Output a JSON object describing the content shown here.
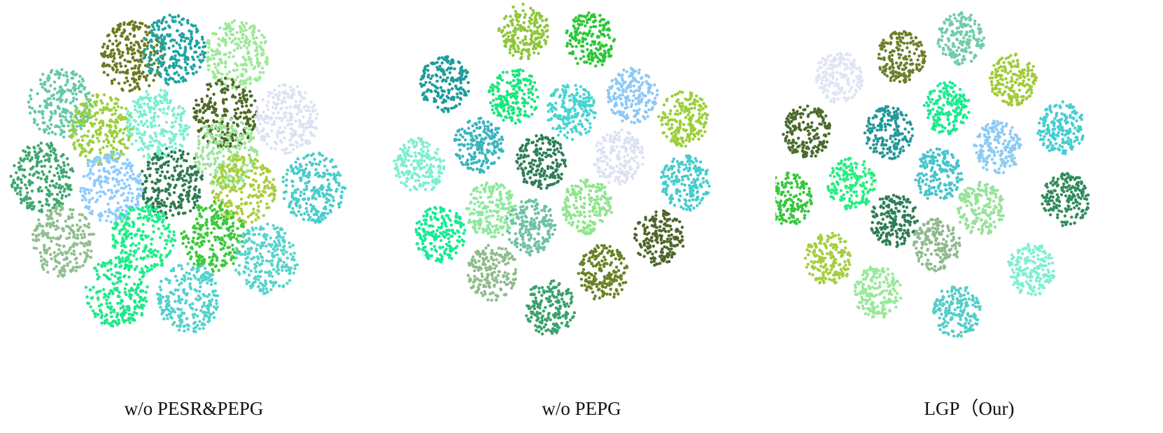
{
  "chart_data": [
    {
      "type": "scatter",
      "title": "w/o PESR&PEPG",
      "xlabel": "",
      "ylabel": "",
      "grid": false,
      "legend": "none",
      "series": [
        {
          "color": "#6b7a1e",
          "x": [
            189
          ],
          "y": [
            81
          ]
        },
        {
          "color": "#20a5a0",
          "x": [
            248
          ],
          "y": [
            71
          ]
        },
        {
          "color": "#9ee89a",
          "x": [
            338
          ],
          "y": [
            78
          ]
        },
        {
          "color": "#66c9a8",
          "x": [
            86
          ],
          "y": [
            148
          ]
        },
        {
          "color": "#9ccf3e",
          "x": [
            145
          ],
          "y": [
            185
          ]
        },
        {
          "color": "#7af0d0",
          "x": [
            225
          ],
          "y": [
            178
          ]
        },
        {
          "color": "#4f6b26",
          "x": [
            322
          ],
          "y": [
            162
          ]
        },
        {
          "color": "#dde2f2",
          "x": [
            410
          ],
          "y": [
            170
          ]
        },
        {
          "color": "#3fa86e",
          "x": [
            60
          ],
          "y": [
            253
          ]
        },
        {
          "color": "#8dccff",
          "x": [
            158
          ],
          "y": [
            268
          ]
        },
        {
          "color": "#2f7b52",
          "x": [
            246
          ],
          "y": [
            262
          ]
        },
        {
          "color": "#9de59a",
          "x": [
            322
          ],
          "y": [
            218
          ]
        },
        {
          "color": "#a8cf3c",
          "x": [
            348
          ],
          "y": [
            270
          ]
        },
        {
          "color": "#48cdca",
          "x": [
            448
          ],
          "y": [
            268
          ]
        },
        {
          "color": "#8fbf8f",
          "x": [
            90
          ],
          "y": [
            345
          ]
        },
        {
          "color": "#1fee8b",
          "x": [
            205
          ],
          "y": [
            340
          ]
        },
        {
          "color": "#3cc93c",
          "x": [
            305
          ],
          "y": [
            338
          ]
        },
        {
          "color": "#55d4cc",
          "x": [
            380
          ],
          "y": [
            370
          ]
        },
        {
          "color": "#1fe88a",
          "x": [
            168
          ],
          "y": [
            418
          ]
        },
        {
          "color": "#52d2cc",
          "x": [
            270
          ],
          "y": [
            425
          ]
        }
      ]
    },
    {
      "type": "scatter",
      "title": "w/o PEPG",
      "xlabel": "",
      "ylabel": "",
      "grid": false,
      "legend": "none",
      "series": [
        {
          "color": "#8ec63b",
          "x": [
            195
          ],
          "y": [
            45
          ]
        },
        {
          "color": "#2cc736",
          "x": [
            290
          ],
          "y": [
            58
          ]
        },
        {
          "color": "#1e9c9a",
          "x": [
            82
          ],
          "y": [
            120
          ]
        },
        {
          "color": "#19e67d",
          "x": [
            180
          ],
          "y": [
            137
          ]
        },
        {
          "color": "#48d4d0",
          "x": [
            262
          ],
          "y": [
            160
          ]
        },
        {
          "color": "#8cc8f6",
          "x": [
            350
          ],
          "y": [
            137
          ]
        },
        {
          "color": "#9bcf38",
          "x": [
            423
          ],
          "y": [
            170
          ]
        },
        {
          "color": "#3ab5bd",
          "x": [
            130
          ],
          "y": [
            207
          ]
        },
        {
          "color": "#2e7e56",
          "x": [
            220
          ],
          "y": [
            232
          ]
        },
        {
          "color": "#dde2f2",
          "x": [
            330
          ],
          "y": [
            225
          ]
        },
        {
          "color": "#7defd0",
          "x": [
            45
          ],
          "y": [
            237
          ]
        },
        {
          "color": "#46cccc",
          "x": [
            425
          ],
          "y": [
            262
          ]
        },
        {
          "color": "#90e58c",
          "x": [
            285
          ],
          "y": [
            295
          ]
        },
        {
          "color": "#8ee99c",
          "x": [
            148
          ],
          "y": [
            300
          ]
        },
        {
          "color": "#6fc2a4",
          "x": [
            205
          ],
          "y": [
            325
          ]
        },
        {
          "color": "#17eb94",
          "x": [
            75
          ],
          "y": [
            335
          ]
        },
        {
          "color": "#4f662a",
          "x": [
            388
          ],
          "y": [
            340
          ]
        },
        {
          "color": "#8ebc8c",
          "x": [
            150
          ],
          "y": [
            390
          ]
        },
        {
          "color": "#6b8224",
          "x": [
            307
          ],
          "y": [
            390
          ]
        },
        {
          "color": "#38a26c",
          "x": [
            232
          ],
          "y": [
            440
          ]
        }
      ]
    },
    {
      "type": "scatter",
      "title": "LGP（Our)",
      "xlabel": "",
      "ylabel": "",
      "grid": false,
      "legend": "none",
      "series": [
        {
          "color": "#6c7f2a",
          "x": [
            180
          ],
          "y": [
            82
          ]
        },
        {
          "color": "#72ccaa",
          "x": [
            265
          ],
          "y": [
            55
          ]
        },
        {
          "color": "#e0e4f4",
          "x": [
            91
          ],
          "y": [
            110
          ]
        },
        {
          "color": "#a0cb38",
          "x": [
            340
          ],
          "y": [
            113
          ]
        },
        {
          "color": "#1aeb90",
          "x": [
            246
          ],
          "y": [
            155
          ]
        },
        {
          "color": "#22989a",
          "x": [
            162
          ],
          "y": [
            190
          ]
        },
        {
          "color": "#4a6b2c",
          "x": [
            45
          ],
          "y": [
            188
          ]
        },
        {
          "color": "#8ccaf4",
          "x": [
            318
          ],
          "y": [
            210
          ]
        },
        {
          "color": "#46cdd0",
          "x": [
            408
          ],
          "y": [
            183
          ]
        },
        {
          "color": "#28ee80",
          "x": [
            109
          ],
          "y": [
            263
          ]
        },
        {
          "color": "#48c4cc",
          "x": [
            233
          ],
          "y": [
            250
          ]
        },
        {
          "color": "#36c83c",
          "x": [
            18
          ],
          "y": [
            285
          ]
        },
        {
          "color": "#338b5c",
          "x": [
            415
          ],
          "y": [
            285
          ]
        },
        {
          "color": "#95e398",
          "x": [
            293
          ],
          "y": [
            298
          ]
        },
        {
          "color": "#2e7e56",
          "x": [
            170
          ],
          "y": [
            315
          ]
        },
        {
          "color": "#8ebb8e",
          "x": [
            230
          ],
          "y": [
            350
          ]
        },
        {
          "color": "#a6ce40",
          "x": [
            76
          ],
          "y": [
            370
          ]
        },
        {
          "color": "#7ff0cf",
          "x": [
            366
          ],
          "y": [
            385
          ]
        },
        {
          "color": "#97ea98",
          "x": [
            146
          ],
          "y": [
            418
          ]
        },
        {
          "color": "#55cdc9",
          "x": [
            260
          ],
          "y": [
            445
          ]
        }
      ]
    }
  ],
  "captions": [
    "w/o PESR&PEPG",
    "w/o PEPG",
    "LGP（Our)"
  ]
}
